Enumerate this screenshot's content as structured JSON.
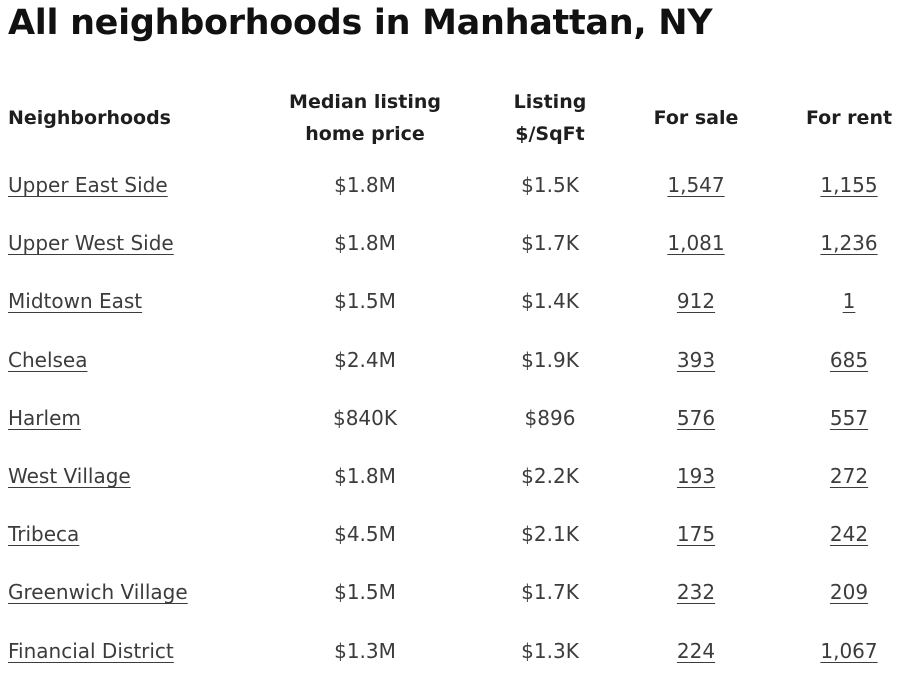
{
  "title": "All neighborhoods in Manhattan, NY",
  "table": {
    "headers": {
      "neighborhoods": "Neighborhoods",
      "median_price": "Median listing\nhome price",
      "price_sqft": "Listing\n$/SqFt",
      "for_sale": "For sale",
      "for_rent": "For rent"
    },
    "rows": [
      {
        "name": "Upper East Side",
        "median": "$1.8M",
        "sqft": "$1.5K",
        "sale": "1,547",
        "rent": "1,155"
      },
      {
        "name": "Upper West Side",
        "median": "$1.8M",
        "sqft": "$1.7K",
        "sale": "1,081",
        "rent": "1,236"
      },
      {
        "name": "Midtown East",
        "median": "$1.5M",
        "sqft": "$1.4K",
        "sale": "912",
        "rent": "1"
      },
      {
        "name": "Chelsea",
        "median": "$2.4M",
        "sqft": "$1.9K",
        "sale": "393",
        "rent": "685"
      },
      {
        "name": "Harlem",
        "median": "$840K",
        "sqft": "$896",
        "sale": "576",
        "rent": "557"
      },
      {
        "name": "West Village",
        "median": "$1.8M",
        "sqft": "$2.2K",
        "sale": "193",
        "rent": "272"
      },
      {
        "name": "Tribeca",
        "median": "$4.5M",
        "sqft": "$2.1K",
        "sale": "175",
        "rent": "242"
      },
      {
        "name": "Greenwich Village",
        "median": "$1.5M",
        "sqft": "$1.7K",
        "sale": "232",
        "rent": "209"
      },
      {
        "name": "Financial District",
        "median": "$1.3M",
        "sqft": "$1.3K",
        "sale": "224",
        "rent": "1,067"
      }
    ]
  }
}
